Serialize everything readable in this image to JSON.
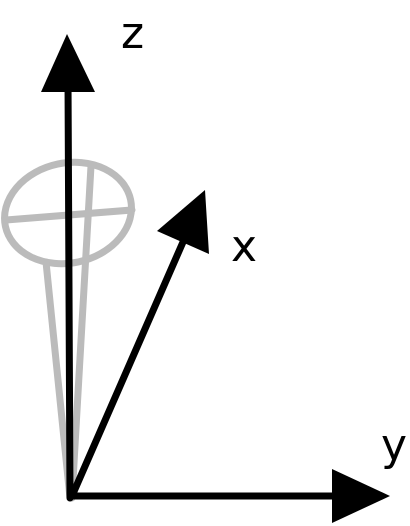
{
  "labels": {
    "z": "z",
    "x": "x",
    "y": "y"
  },
  "colors": {
    "axis": "#000000",
    "pendulum": "#bbbbbb",
    "background": "#ffffff"
  }
}
